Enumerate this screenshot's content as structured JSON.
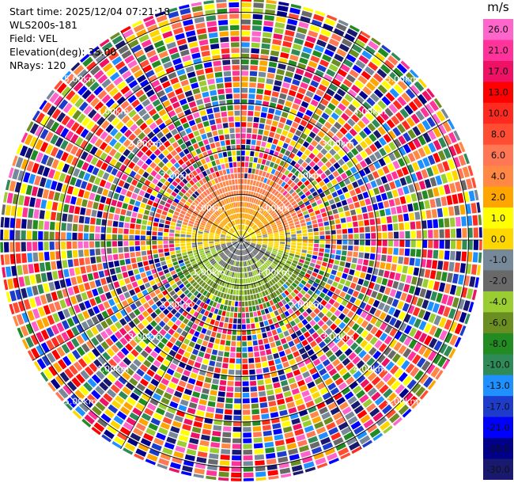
{
  "header": {
    "start_time": "Start time: 2025/12/04 07:21:18",
    "instrument": "WLS200s-181",
    "field": "Field: VEL",
    "elevation": "Elevation(deg): 35.00",
    "nrays": "NRays: 120"
  },
  "chart_data": {
    "type": "heatmap",
    "projection": "polar (PPI scan)",
    "field": "VEL",
    "units": "m/s",
    "elevation_deg": 35.0,
    "n_rays": 120,
    "range_rings_km": [
      1.0,
      2.0,
      3.0,
      4.0,
      5.0
    ],
    "ring_labels": [
      "1.00km",
      "2.00km",
      "3.00km",
      "4.00km",
      "5.00km"
    ],
    "max_range_km": 5.3,
    "colorbar": {
      "title": "m/s",
      "ticks": [
        "26.0",
        "21.0",
        "17.0",
        "13.0",
        "10.0",
        "8.0",
        "6.0",
        "4.0",
        "2.0",
        "1.0",
        "0.0",
        "-1.0",
        "-2.0",
        "-4.0",
        "-6.0",
        "-8.0",
        "-10.0",
        "-13.0",
        "-17.0",
        "-21.0",
        "-26.0",
        "-30.0"
      ],
      "colors": [
        "#ff66cc",
        "#ff3399",
        "#ee1166",
        "#ff0000",
        "#ff2a1f",
        "#ff4d33",
        "#ff7755",
        "#ff8844",
        "#ffa500",
        "#ffff00",
        "#ffd700",
        "#778899",
        "#696969",
        "#9acd32",
        "#6b8e23",
        "#228b22",
        "#2e8b57",
        "#1e90ff",
        "#1e3ccc",
        "#0000ff",
        "#000088",
        "#191970"
      ]
    },
    "inner_pattern": {
      "description": "coherent near-range velocity field",
      "range_km": 1.55,
      "north_half": "positive velocities 1.0 to 6.0 m/s (yellow / orange)",
      "center_band": "about 0.0 m/s (gray)",
      "south_half": "negative velocities -1.0 to -8.0 m/s (green)"
    },
    "outer_pattern": "noise: random velocities across the full colour scale beyond about 1.6 km"
  }
}
